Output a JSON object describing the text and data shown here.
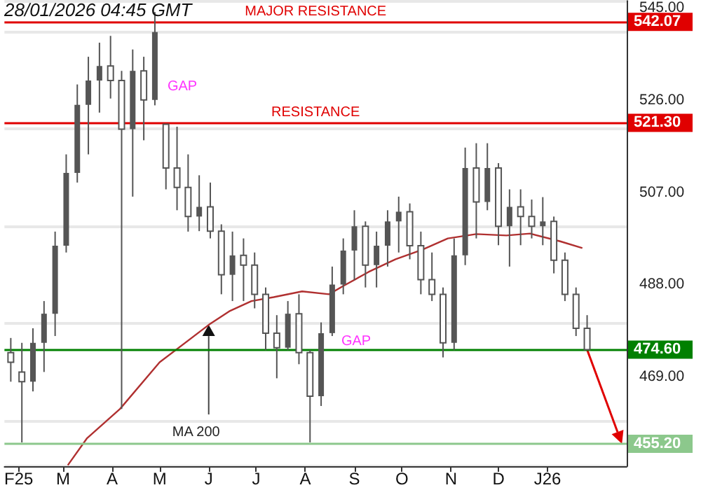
{
  "chart_data": {
    "type": "candlestick",
    "xlim": [
      "2025-01-23",
      "2026-02-20"
    ],
    "xticks": [
      {
        "value": "2025-02-01",
        "label": "F25"
      },
      {
        "value": "2025-03-01",
        "label": "M"
      },
      {
        "value": "2025-04-01",
        "label": "A"
      },
      {
        "value": "2025-05-01",
        "label": "M"
      },
      {
        "value": "2025-06-01",
        "label": "J"
      },
      {
        "value": "2025-07-01",
        "label": "J"
      },
      {
        "value": "2025-08-01",
        "label": "A"
      },
      {
        "value": "2025-09-01",
        "label": "S"
      },
      {
        "value": "2025-10-01",
        "label": "O"
      },
      {
        "value": "2025-11-01",
        "label": "N"
      },
      {
        "value": "2025-12-01",
        "label": "D"
      },
      {
        "value": "2026-01-01",
        "label": "J26"
      }
    ],
    "ylim": [
      450.6,
      546.4
    ],
    "yticks": [
      {
        "value": 469,
        "label": "469.00"
      },
      {
        "value": 488,
        "label": "488.00"
      },
      {
        "value": 507,
        "label": "507.00"
      },
      {
        "value": 526,
        "label": "526.00"
      },
      {
        "value": 545,
        "label": "545.00"
      }
    ],
    "y2lim": [
      450.6,
      546.4
    ],
    "y2ticks": [
      {
        "value": 455.2,
        "label": "455.20"
      },
      {
        "value": 474.6,
        "label": "474.60"
      },
      {
        "value": 521.3,
        "label": "521.30"
      },
      {
        "value": 542.07,
        "label": "542.07"
      }
    ],
    "grid": "y",
    "series": [
      {
        "color": "#555555",
        "x": [
          "2025-01-27",
          "2025-02-03",
          "2025-02-10",
          "2025-02-17",
          "2025-02-24",
          "2025-03-03",
          "2025-03-10",
          "2025-03-17",
          "2025-03-24",
          "2025-03-31",
          "2025-04-07",
          "2025-04-14",
          "2025-04-21",
          "2025-04-28",
          "2025-05-05",
          "2025-05-12",
          "2025-05-19",
          "2025-05-26",
          "2025-06-02",
          "2025-06-09",
          "2025-06-16",
          "2025-06-23",
          "2025-06-30",
          "2025-07-07",
          "2025-07-14",
          "2025-07-21",
          "2025-07-28",
          "2025-08-04",
          "2025-08-11",
          "2025-08-18",
          "2025-08-25",
          "2025-09-01",
          "2025-09-08",
          "2025-09-15",
          "2025-09-22",
          "2025-09-29",
          "2025-10-06",
          "2025-10-13",
          "2025-10-20",
          "2025-10-27",
          "2025-11-03",
          "2025-11-10",
          "2025-11-17",
          "2025-11-24",
          "2025-12-01",
          "2025-12-08",
          "2025-12-15",
          "2025-12-22",
          "2025-12-29",
          "2026-01-05",
          "2026-01-12",
          "2026-01-19",
          "2026-01-26"
        ],
        "ohlc": [
          [
            474,
            477,
            468,
            472
          ],
          [
            470,
            476,
            455.5,
            468
          ],
          [
            468,
            479,
            466,
            476
          ],
          [
            476,
            484.6,
            470,
            482
          ],
          [
            482,
            498.9,
            477.4,
            496
          ],
          [
            496,
            514.8,
            494.6,
            511
          ],
          [
            511,
            529.2,
            509,
            525
          ],
          [
            525,
            534.9,
            514.8,
            530
          ],
          [
            530,
            537.8,
            523.4,
            533
          ],
          [
            533,
            539.2,
            526.3,
            530
          ],
          [
            530,
            532,
            462.4,
            520
          ],
          [
            520,
            536.4,
            506.1,
            532
          ],
          [
            532,
            534.9,
            517.7,
            526
          ],
          [
            526,
            544.1,
            524.9,
            540
          ],
          [
            521,
            521.1,
            507.6,
            512
          ],
          [
            512,
            520.5,
            503.3,
            508
          ],
          [
            508,
            514.8,
            498.9,
            502
          ],
          [
            502,
            510.5,
            499,
            504
          ],
          [
            504,
            509,
            497.5,
            499
          ],
          [
            499,
            500.4,
            486,
            490
          ],
          [
            490,
            498.9,
            484.6,
            494
          ],
          [
            494,
            497.5,
            484.6,
            492
          ],
          [
            492,
            494.6,
            483.1,
            486
          ],
          [
            486,
            487.4,
            474.5,
            478
          ],
          [
            478,
            481.7,
            468.7,
            475
          ],
          [
            475,
            484.6,
            474.5,
            482
          ],
          [
            482,
            486,
            471.6,
            474
          ],
          [
            474,
            474.5,
            455.5,
            465
          ],
          [
            465,
            480.2,
            463,
            478
          ],
          [
            478,
            491.7,
            477.4,
            488
          ],
          [
            488,
            497.5,
            486,
            495
          ],
          [
            495,
            503.3,
            488.9,
            500
          ],
          [
            500,
            501,
            487.4,
            492
          ],
          [
            492,
            498.9,
            487.4,
            496
          ],
          [
            496,
            503.3,
            491.7,
            501
          ],
          [
            501,
            506.1,
            494.6,
            503
          ],
          [
            503,
            504.7,
            493.2,
            496
          ],
          [
            496,
            498.9,
            486,
            489
          ],
          [
            489,
            494.6,
            484.6,
            486
          ],
          [
            486,
            487.4,
            473,
            476
          ],
          [
            476,
            497.5,
            474.5,
            494
          ],
          [
            494,
            516.2,
            492,
            512
          ],
          [
            512,
            517.1,
            497.5,
            505
          ],
          [
            505,
            517.1,
            503.3,
            512
          ],
          [
            512,
            513,
            496.1,
            500
          ],
          [
            500,
            507.6,
            491.7,
            504
          ],
          [
            504,
            507.6,
            496.1,
            502
          ],
          [
            502,
            505.5,
            497.5,
            500
          ],
          [
            500,
            506,
            496.1,
            501
          ],
          [
            501,
            502,
            490.3,
            493
          ],
          [
            493,
            494.6,
            484.6,
            486
          ],
          [
            486,
            487.4,
            477.4,
            479
          ],
          [
            479,
            481.7,
            474.6,
            474.6
          ]
        ]
      },
      {
        "type": "line",
        "color": "#b03030",
        "x": [
          "2025-03-04",
          "2025-03-16",
          "2025-04-06",
          "2025-05-01",
          "2025-06-01",
          "2025-06-14",
          "2025-06-28",
          "2025-07-12",
          "2025-07-30",
          "2025-08-16",
          "2025-08-25",
          "2025-09-10",
          "2025-09-27",
          "2025-10-14",
          "2025-10-30",
          "2025-11-17",
          "2025-12-06",
          "2025-12-21",
          "2026-01-09",
          "2026-01-23"
        ],
        "values": [
          450.8,
          456.3,
          462.4,
          472,
          479.7,
          482.5,
          484.6,
          485.4,
          486.6,
          486,
          487.7,
          490.6,
          493.2,
          495.2,
          497.5,
          498.4,
          498.1,
          498.5,
          496.9,
          495.5
        ]
      }
    ],
    "marker": "none",
    "line_style": "solid",
    "ref_lines": [
      {
        "axis": "y",
        "value": 542.07,
        "label": "MAJOR RESISTANCE",
        "color": "#e00000"
      },
      {
        "axis": "y",
        "value": 521.3,
        "label": "RESISTANCE",
        "color": "#e00000"
      },
      {
        "axis": "y",
        "value": 474.6,
        "color": "#008000"
      },
      {
        "axis": "y",
        "value": 455.2,
        "color": "#8cc88c"
      }
    ],
    "annotations": [
      "28/01/2026 04:45 GMT",
      "GAP",
      "GAP",
      {
        "text": "MA 200",
        "x": "2025-06-01",
        "y": 479.7
      }
    ]
  }
}
